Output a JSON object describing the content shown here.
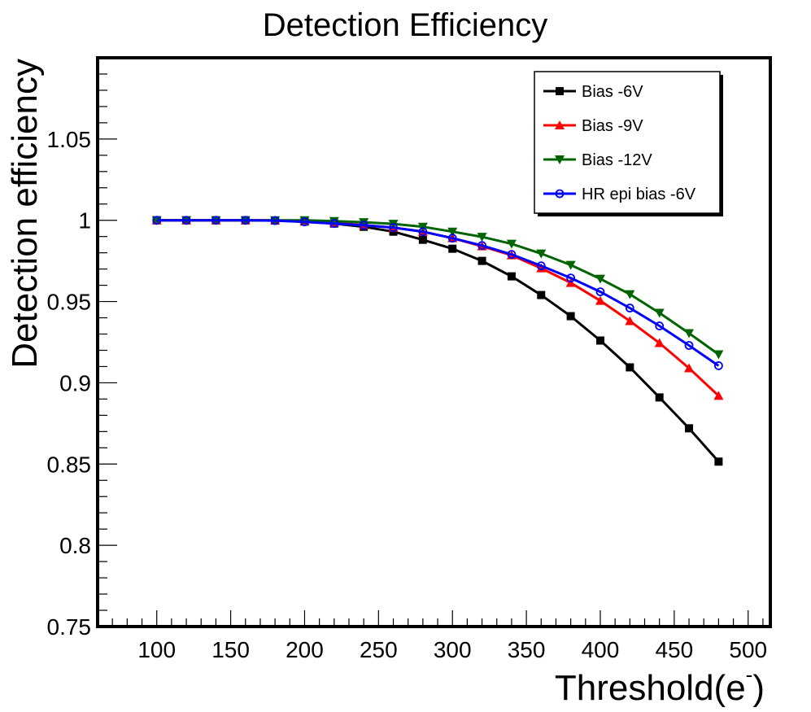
{
  "chart_data": {
    "type": "line",
    "title": "Detection Efficiency",
    "xlabel": "Threshold(e",
    "xlabel_superscript": "-",
    "xlabel_close": ")",
    "ylabel": "Detection efficiency",
    "xlim": [
      60,
      515
    ],
    "ylim": [
      0.75,
      1.1
    ],
    "xticks": [
      100,
      150,
      200,
      250,
      300,
      350,
      400,
      450,
      500
    ],
    "xtick_labels": [
      "100",
      "150",
      "200",
      "250",
      "300",
      "350",
      "400",
      "450",
      "500"
    ],
    "yticks": [
      0.75,
      0.8,
      0.85,
      0.9,
      0.95,
      1.0,
      1.05
    ],
    "ytick_labels": [
      "0.75",
      "0.8",
      "0.85",
      "0.9",
      "0.95",
      "1",
      "1.05"
    ],
    "grid": false,
    "legend_position": "top-right",
    "x": [
      100,
      120,
      140,
      160,
      180,
      200,
      220,
      240,
      260,
      280,
      300,
      320,
      340,
      360,
      380,
      400,
      420,
      440,
      460,
      480
    ],
    "series": [
      {
        "name": "Bias -6V",
        "color": "#000000",
        "marker": "square",
        "values": [
          1.0,
          1.0,
          1.0,
          1.0,
          0.9998,
          0.9992,
          0.998,
          0.996,
          0.993,
          0.988,
          0.9825,
          0.975,
          0.9655,
          0.954,
          0.941,
          0.926,
          0.9095,
          0.891,
          0.872,
          0.8515
        ]
      },
      {
        "name": "Bias -9V",
        "color": "#ff0000",
        "marker": "triangle-up",
        "values": [
          1.0,
          1.0,
          1.0,
          1.0,
          1.0,
          0.9995,
          0.9985,
          0.997,
          0.9955,
          0.993,
          0.989,
          0.984,
          0.9785,
          0.9705,
          0.9615,
          0.9505,
          0.938,
          0.9245,
          0.909,
          0.892
        ]
      },
      {
        "name": "Bias -12V",
        "color": "#006400",
        "marker": "triangle-down",
        "values": [
          1.0,
          1.0,
          1.0,
          1.0,
          1.0,
          1.0,
          0.9995,
          0.9988,
          0.9978,
          0.996,
          0.993,
          0.9898,
          0.9855,
          0.9795,
          0.9725,
          0.964,
          0.9545,
          0.943,
          0.9305,
          0.9175
        ]
      },
      {
        "name": "HR epi bias -6V",
        "color": "#0000ff",
        "marker": "open-circle",
        "values": [
          1.0,
          1.0,
          1.0,
          1.0,
          0.9998,
          0.999,
          0.998,
          0.997,
          0.9955,
          0.993,
          0.989,
          0.9845,
          0.979,
          0.972,
          0.9645,
          0.956,
          0.946,
          0.935,
          0.923,
          0.9105
        ]
      }
    ]
  }
}
